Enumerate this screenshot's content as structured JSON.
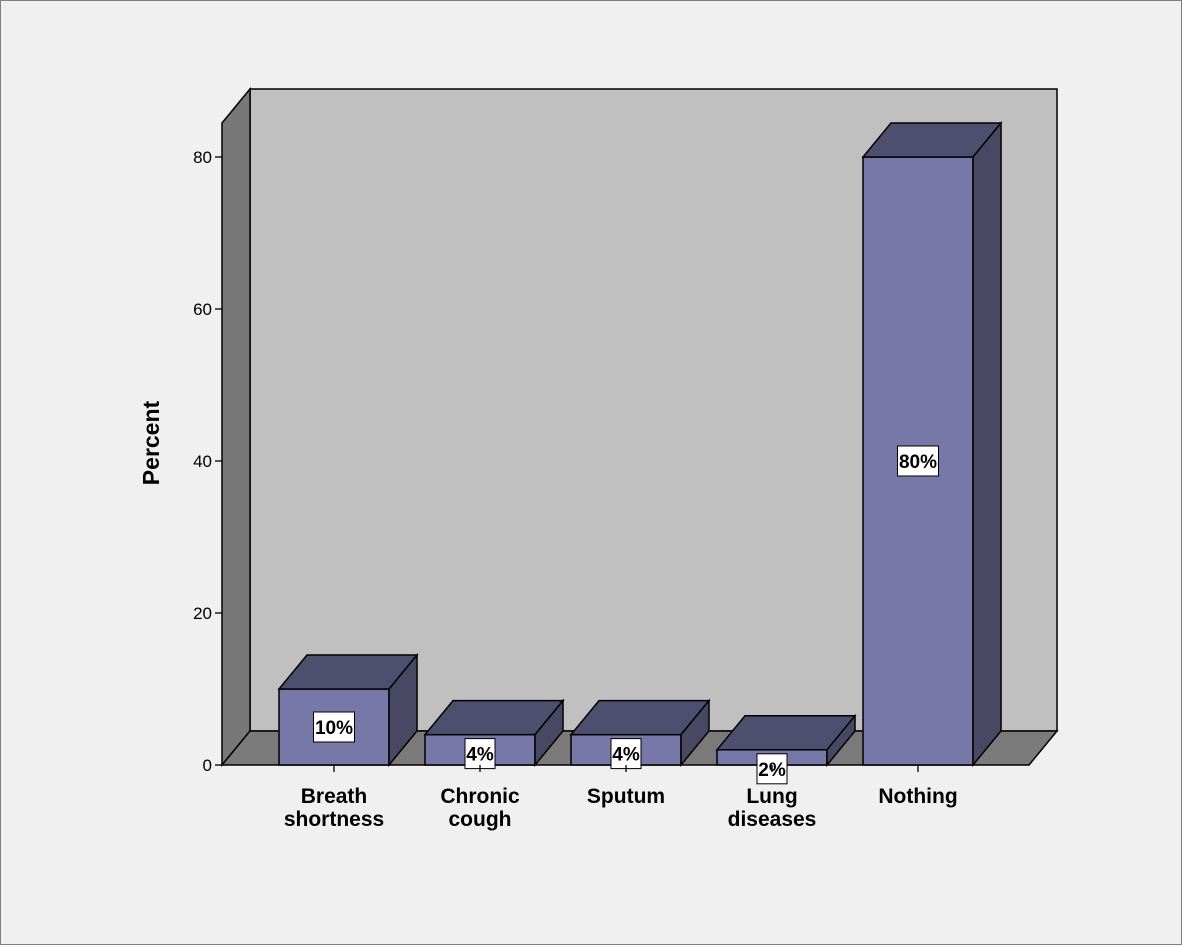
{
  "chart_data": {
    "type": "bar",
    "title": "",
    "xlabel": "",
    "ylabel": "Percent",
    "ylim": [
      0,
      80
    ],
    "yticks": [
      0,
      20,
      40,
      60,
      80
    ],
    "grid": false,
    "legend": "none",
    "categories": [
      [
        "Breath",
        "shortness"
      ],
      [
        "Chronic",
        "cough"
      ],
      [
        "Sputum"
      ],
      [
        "Lung",
        "diseases"
      ],
      [
        "Nothing"
      ]
    ],
    "values": [
      10,
      4,
      4,
      2,
      80
    ],
    "data_labels": [
      "10%",
      "4%",
      "4%",
      "2%",
      "80%"
    ],
    "colors": {
      "bar_front": "#7878a8",
      "bar_top": "#4e4e6e",
      "bar_side": "#484864",
      "back_wall": "#c0c0c0",
      "side_wall": "#787878",
      "floor": "#7a7a7a",
      "frame_background": "#f0f0f0"
    }
  }
}
